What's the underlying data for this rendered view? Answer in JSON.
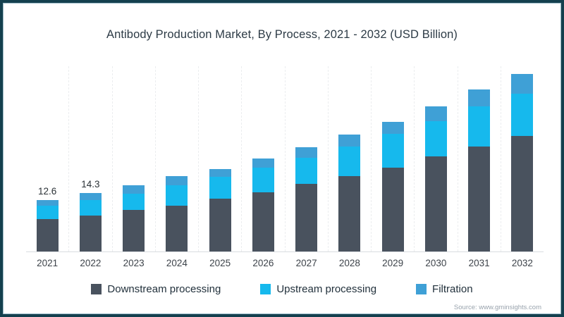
{
  "title": "Antibody Production Market, By Process, 2021 - 2032 (USD Billion)",
  "source": "Source: www.gminsights.com",
  "colors": {
    "frame_border": "#14404e",
    "downstream": "#49525e",
    "upstream": "#16b9ed",
    "filtration": "#3fa0d6",
    "axis_line": "#d9dde0"
  },
  "legend": [
    {
      "label": "Downstream processing",
      "color": "#49525e"
    },
    {
      "label": "Upstream processing",
      "color": "#16b9ed"
    },
    {
      "label": "Filtration",
      "color": "#3fa0d6"
    }
  ],
  "chart_data": {
    "type": "bar",
    "stacked": true,
    "title": "Antibody Production Market, By Process, 2021 - 2032 (USD Billion)",
    "xlabel": "",
    "ylabel": "USD Billion",
    "ylim": [
      0,
      45
    ],
    "legend_position": "bottom",
    "grid": "faint dashed vertical separators between categories, no y-axis",
    "categories": [
      "2021",
      "2022",
      "2023",
      "2024",
      "2025",
      "2026",
      "2027",
      "2028",
      "2029",
      "2030",
      "2031",
      "2032"
    ],
    "series": [
      {
        "name": "Downstream processing",
        "color": "#49525e",
        "values": [
          7.9,
          8.9,
          10.2,
          11.3,
          12.9,
          14.5,
          16.6,
          18.5,
          20.5,
          23.3,
          25.8,
          28.3
        ]
      },
      {
        "name": "Upstream processing",
        "color": "#16b9ed",
        "values": [
          3.3,
          3.7,
          3.9,
          4.9,
          5.5,
          6.0,
          6.3,
          7.2,
          8.3,
          8.6,
          9.8,
          10.4
        ]
      },
      {
        "name": "Filtration",
        "color": "#3fa0d6",
        "values": [
          1.4,
          1.7,
          2.1,
          2.3,
          1.9,
          2.3,
          2.6,
          2.9,
          3.0,
          3.7,
          4.1,
          4.8
        ]
      }
    ],
    "totals": [
      12.6,
      14.3,
      16.2,
      18.5,
      20.3,
      22.8,
      25.5,
      28.6,
      31.8,
      35.6,
      39.7,
      43.5
    ],
    "data_labels": [
      "12.6",
      "14.3",
      "",
      "",
      "",
      "",
      "",
      "",
      "",
      "",
      "",
      ""
    ]
  }
}
